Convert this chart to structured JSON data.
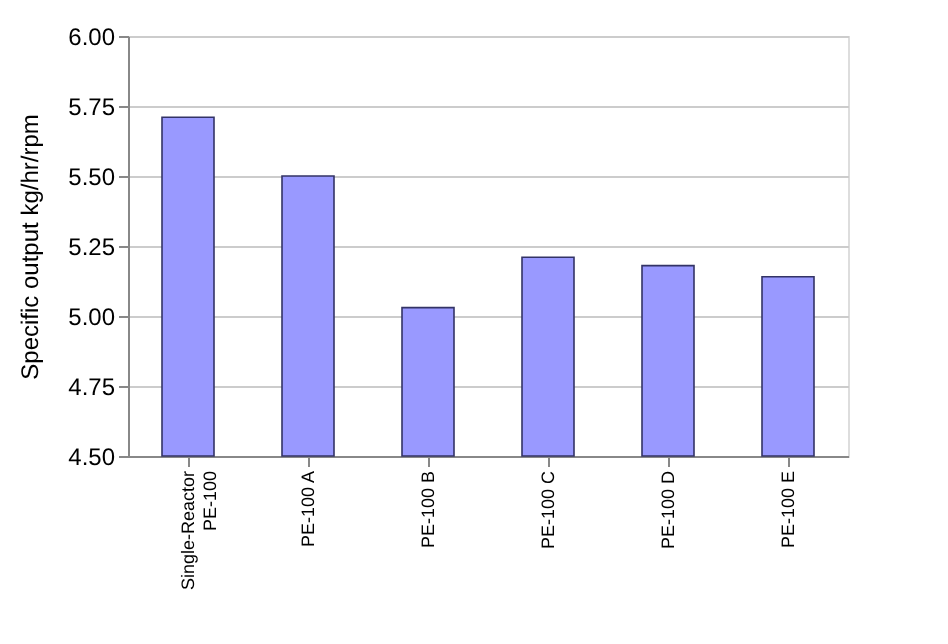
{
  "chart_data": {
    "type": "bar",
    "ylabel": "Specific output kg/hr/rpm",
    "categories": [
      "Single-Reactor\nPE-100",
      "PE-100 A",
      "PE-100 B",
      "PE-100 C",
      "PE-100 D",
      "PE-100 E"
    ],
    "values": [
      5.71,
      5.5,
      5.03,
      5.21,
      5.18,
      5.14
    ],
    "color": "#9999ff",
    "ylim": [
      4.5,
      6.0
    ],
    "yticks": [
      {
        "value": 4.5,
        "label": "4.50"
      },
      {
        "value": 4.75,
        "label": "4.75"
      },
      {
        "value": 5.0,
        "label": "5.00"
      },
      {
        "value": 5.25,
        "label": "5.25"
      },
      {
        "value": 5.5,
        "label": "5.50"
      },
      {
        "value": 5.75,
        "label": "5.75"
      },
      {
        "value": 6.0,
        "label": "6.00"
      }
    ],
    "grid": "y"
  }
}
